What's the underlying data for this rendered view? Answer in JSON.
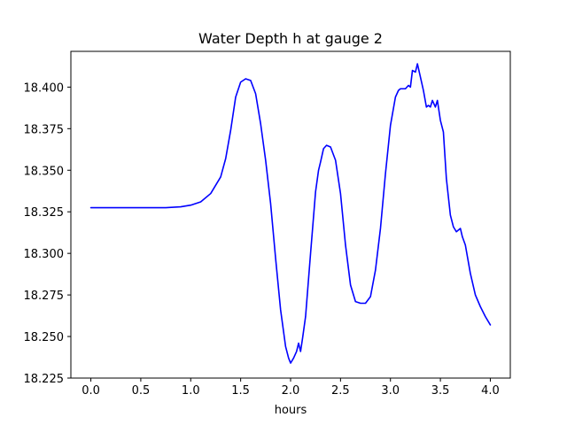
{
  "chart_data": {
    "type": "line",
    "title": "Water Depth h at gauge 2",
    "xlabel": "hours",
    "ylabel": "",
    "xlim": [
      -0.2,
      4.2
    ],
    "ylim": [
      18.225,
      18.4215
    ],
    "grid": false,
    "legend": "none",
    "x_ticks": [
      {
        "value": 0.0,
        "label": "0.0"
      },
      {
        "value": 0.5,
        "label": "0.5"
      },
      {
        "value": 1.0,
        "label": "1.0"
      },
      {
        "value": 1.5,
        "label": "1.5"
      },
      {
        "value": 2.0,
        "label": "2.0"
      },
      {
        "value": 2.5,
        "label": "2.5"
      },
      {
        "value": 3.0,
        "label": "3.0"
      },
      {
        "value": 3.5,
        "label": "3.5"
      },
      {
        "value": 4.0,
        "label": "4.0"
      }
    ],
    "y_ticks": [
      {
        "value": 18.225,
        "label": "18.225"
      },
      {
        "value": 18.25,
        "label": "18.250"
      },
      {
        "value": 18.275,
        "label": "18.275"
      },
      {
        "value": 18.3,
        "label": "18.300"
      },
      {
        "value": 18.325,
        "label": "18.325"
      },
      {
        "value": 18.35,
        "label": "18.350"
      },
      {
        "value": 18.375,
        "label": "18.375"
      },
      {
        "value": 18.4,
        "label": "18.400"
      }
    ],
    "series": [
      {
        "color": "#0000ff",
        "x": [
          0.0,
          0.25,
          0.5,
          0.75,
          0.9,
          1.0,
          1.1,
          1.2,
          1.3,
          1.35,
          1.4,
          1.45,
          1.5,
          1.55,
          1.6,
          1.65,
          1.7,
          1.75,
          1.8,
          1.85,
          1.9,
          1.95,
          1.98,
          2.0,
          2.03,
          2.06,
          2.08,
          2.1,
          2.12,
          2.15,
          2.2,
          2.25,
          2.28,
          2.3,
          2.33,
          2.36,
          2.4,
          2.45,
          2.5,
          2.55,
          2.6,
          2.65,
          2.7,
          2.75,
          2.8,
          2.85,
          2.9,
          2.95,
          3.0,
          3.05,
          3.08,
          3.1,
          3.15,
          3.18,
          3.2,
          3.22,
          3.25,
          3.27,
          3.3,
          3.33,
          3.36,
          3.38,
          3.4,
          3.42,
          3.45,
          3.47,
          3.5,
          3.53,
          3.56,
          3.6,
          3.63,
          3.66,
          3.7,
          3.72,
          3.75,
          3.8,
          3.85,
          3.9,
          3.95,
          4.0
        ],
        "values": [
          18.3275,
          18.3275,
          18.3275,
          18.3275,
          18.328,
          18.329,
          18.331,
          18.336,
          18.346,
          18.357,
          18.374,
          18.394,
          18.403,
          18.405,
          18.404,
          18.396,
          18.378,
          18.356,
          18.33,
          18.297,
          18.266,
          18.244,
          18.237,
          18.234,
          18.237,
          18.241,
          18.246,
          18.241,
          18.249,
          18.262,
          18.3,
          18.337,
          18.35,
          18.355,
          18.363,
          18.365,
          18.364,
          18.356,
          18.336,
          18.305,
          18.281,
          18.271,
          18.27,
          18.27,
          18.274,
          18.29,
          18.315,
          18.348,
          18.377,
          18.394,
          18.398,
          18.399,
          18.399,
          18.401,
          18.4,
          18.41,
          18.409,
          18.414,
          18.406,
          18.398,
          18.388,
          18.389,
          18.388,
          18.392,
          18.388,
          18.392,
          18.38,
          18.373,
          18.345,
          18.323,
          18.316,
          18.313,
          18.315,
          18.31,
          18.305,
          18.288,
          18.275,
          18.268,
          18.262,
          18.257
        ]
      }
    ]
  }
}
